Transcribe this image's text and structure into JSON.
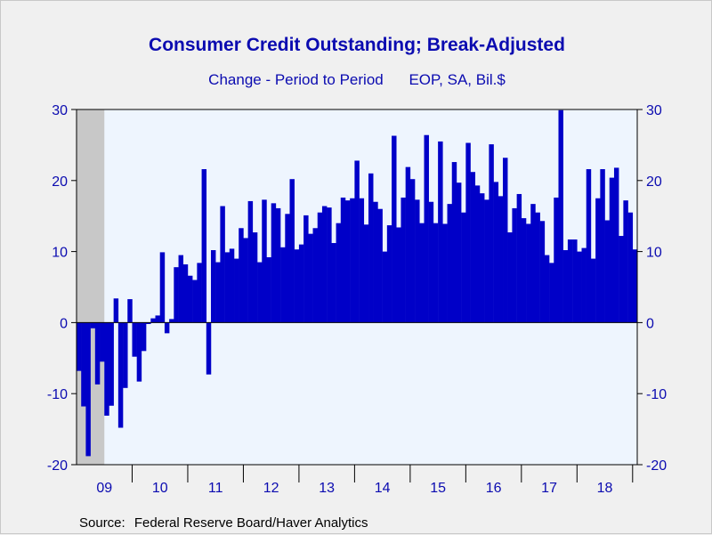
{
  "chart_data": {
    "type": "bar",
    "title": "Consumer Credit Outstanding; Break-Adjusted",
    "subtitle_left": "Change - Period to Period",
    "subtitle_right": "EOP, SA, Bil.$",
    "source_label": "Source:",
    "source_text": "Federal Reserve Board/Haver Analytics",
    "ylim": [
      -20,
      30
    ],
    "y_ticks": [
      30,
      20,
      10,
      0,
      -10,
      -20
    ],
    "x_axis_years": [
      "09",
      "10",
      "11",
      "12",
      "13",
      "14",
      "15",
      "16",
      "17",
      "18"
    ],
    "frequency": "monthly",
    "start": "2009-01",
    "recession_shading": "2009-01 to 2009-06",
    "colors": {
      "bar": "#0000c8",
      "plot_bg": "#eef5fe",
      "recession": "#c8c8c8",
      "text": "#0b0bb0"
    },
    "values": [
      -6.8,
      -11.8,
      -18.8,
      -0.8,
      -8.7,
      -5.5,
      -13.1,
      -11.7,
      3.4,
      -14.8,
      -9.2,
      3.3,
      -4.8,
      -8.3,
      -4,
      -0.2,
      0.6,
      1,
      9.9,
      -1.5,
      0.5,
      7.8,
      9.5,
      8.2,
      6.6,
      6,
      8.4,
      21.6,
      -7.3,
      10.2,
      8.5,
      16.4,
      9.9,
      10.4,
      9,
      13.3,
      11.9,
      17.1,
      12.7,
      8.5,
      17.3,
      9.2,
      16.8,
      16.1,
      10.6,
      15.3,
      20.2,
      10.3,
      11,
      15.1,
      12.5,
      13.3,
      15.5,
      16.4,
      16.2,
      11.2,
      14,
      17.6,
      17.2,
      17.5,
      22.8,
      17.5,
      13.8,
      21,
      17,
      16,
      10,
      13.7,
      26.3,
      13.4,
      17.6,
      21.9,
      20.2,
      17.3,
      14,
      26.4,
      17,
      14,
      25.5,
      13.9,
      16.7,
      22.6,
      19.7,
      15.5,
      25.3,
      21.2,
      19.3,
      18.2,
      17.3,
      25.1,
      19.8,
      17.8,
      23.2,
      12.7,
      16.1,
      18.1,
      14.7,
      13.9,
      16.7,
      15.5,
      14.3,
      9.5,
      8.4,
      17.6,
      29.9,
      10.2,
      11.7,
      11.7,
      10,
      10.5,
      21.6,
      9,
      17.5,
      21.6,
      14.4,
      20.4,
      21.8,
      12.2,
      17.2,
      15.5,
      10.3
    ]
  }
}
